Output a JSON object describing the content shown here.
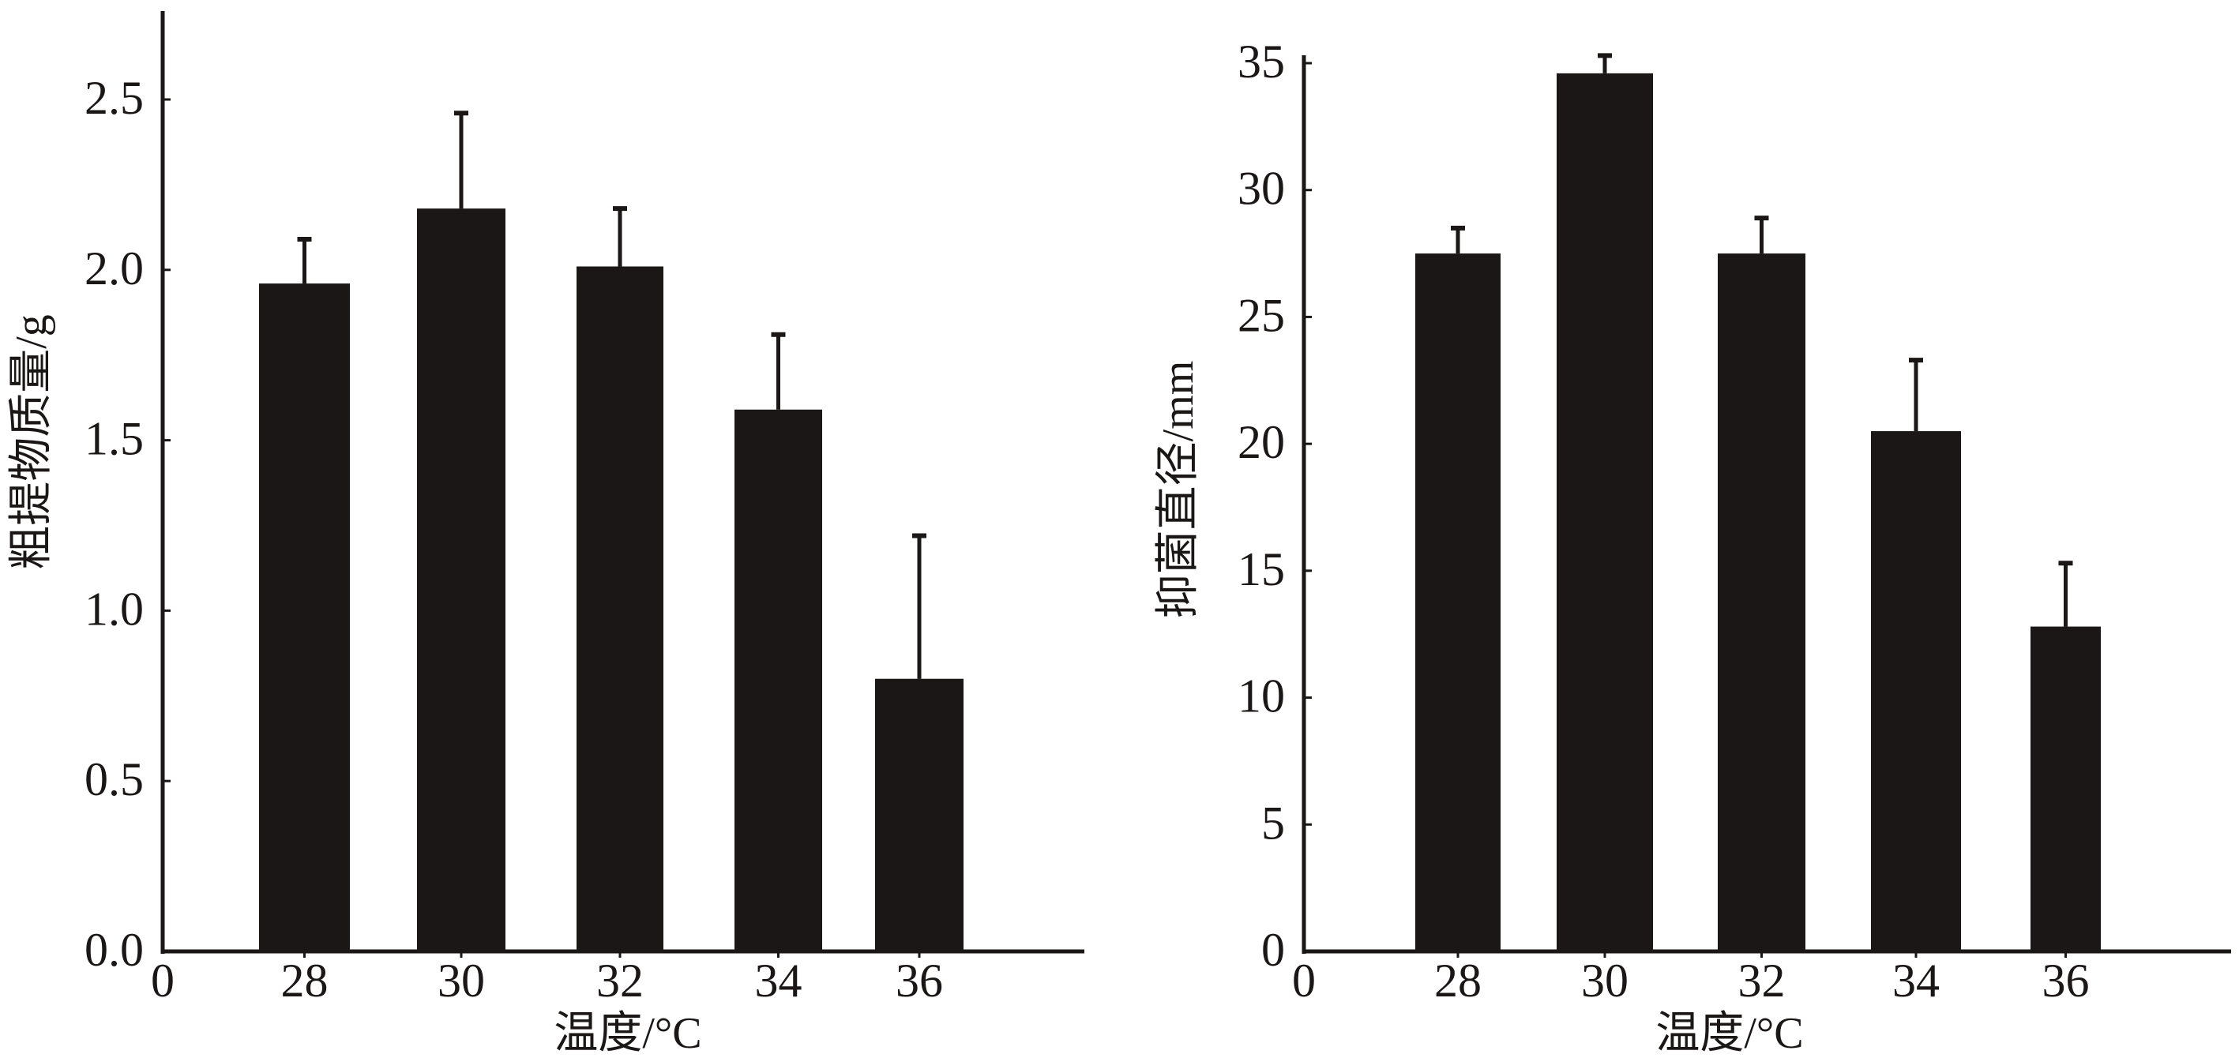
{
  "colors": {
    "bar": "#1a1716",
    "axis": "#1a1716"
  },
  "chart_data": [
    {
      "type": "bar",
      "title": "",
      "xlabel": "温度/°C",
      "ylabel": "粗提物质量/g",
      "origin_label": "0",
      "categories": [
        "28",
        "30",
        "32",
        "34",
        "36"
      ],
      "values": [
        1.96,
        2.18,
        2.01,
        1.59,
        0.8
      ],
      "error_upper": [
        2.09,
        2.46,
        2.18,
        1.81,
        1.22
      ],
      "yticks": [
        "0.0",
        "0.5",
        "1.0",
        "1.5",
        "2.0",
        "2.5"
      ],
      "ylim": [
        0,
        2.5
      ],
      "grid": false
    },
    {
      "type": "bar",
      "title": "",
      "xlabel": "温度/°C",
      "ylabel": "抑菌直径/mm",
      "origin_label": "0",
      "categories": [
        "28",
        "30",
        "32",
        "34",
        "36"
      ],
      "values": [
        27.5,
        34.6,
        27.5,
        20.5,
        12.8
      ],
      "error_upper": [
        28.5,
        35.3,
        28.9,
        23.3,
        15.3
      ],
      "yticks": [
        "0",
        "5",
        "10",
        "15",
        "20",
        "25",
        "30",
        "35"
      ],
      "ylim": [
        0,
        35
      ],
      "grid": false
    }
  ]
}
